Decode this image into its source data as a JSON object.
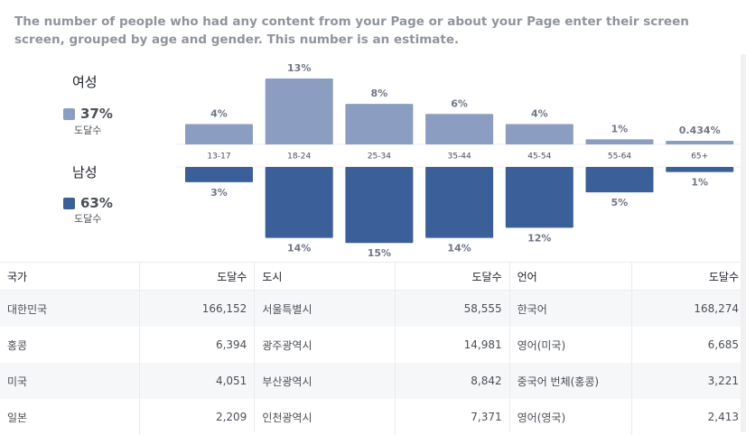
{
  "description": "The number of people who had any content from your Page or about your Page enter their screen screen, grouped by age and gender. This number is an estimate.",
  "legend": {
    "female": {
      "label": "여성",
      "percent": "37%",
      "sub": "도달수",
      "color": "#8c9dc2"
    },
    "male": {
      "label": "남성",
      "percent": "63%",
      "sub": "도달수",
      "color": "#3b5f99"
    }
  },
  "chart_data": {
    "type": "bar",
    "categories": [
      "13-17",
      "18-24",
      "25-34",
      "35-44",
      "45-54",
      "55-64",
      "65+"
    ],
    "series": [
      {
        "name": "여성",
        "values": [
          4,
          13,
          8,
          6,
          4,
          1,
          0.434
        ],
        "labels": [
          "4%",
          "13%",
          "8%",
          "6%",
          "4%",
          "1%",
          "0.434%"
        ],
        "color": "#8c9dc2"
      },
      {
        "name": "남성",
        "values": [
          3,
          14,
          15,
          14,
          12,
          5,
          1
        ],
        "labels": [
          "3%",
          "14%",
          "15%",
          "14%",
          "12%",
          "5%",
          "1%"
        ],
        "color": "#3b5f99"
      }
    ],
    "ylim": [
      0,
      15
    ]
  },
  "tables": [
    {
      "header": {
        "name": "국가",
        "value": "도달수"
      },
      "rows": [
        {
          "name": "대한민국",
          "value": "166,152"
        },
        {
          "name": "홍콩",
          "value": "6,394"
        },
        {
          "name": "미국",
          "value": "4,051"
        },
        {
          "name": "일본",
          "value": "2,209"
        }
      ]
    },
    {
      "header": {
        "name": "도시",
        "value": "도달수"
      },
      "rows": [
        {
          "name": "서울특별시",
          "value": "58,555"
        },
        {
          "name": "광주광역시",
          "value": "14,981"
        },
        {
          "name": "부산광역시",
          "value": "8,842"
        },
        {
          "name": "인천광역시",
          "value": "7,371"
        }
      ]
    },
    {
      "header": {
        "name": "언어",
        "value": "도달수"
      },
      "rows": [
        {
          "name": "한국어",
          "value": "168,274"
        },
        {
          "name": "영어(미국)",
          "value": "6,685"
        },
        {
          "name": "중국어 번체(홍콩)",
          "value": "3,221"
        },
        {
          "name": "영어(영국)",
          "value": "2,413"
        }
      ]
    }
  ]
}
